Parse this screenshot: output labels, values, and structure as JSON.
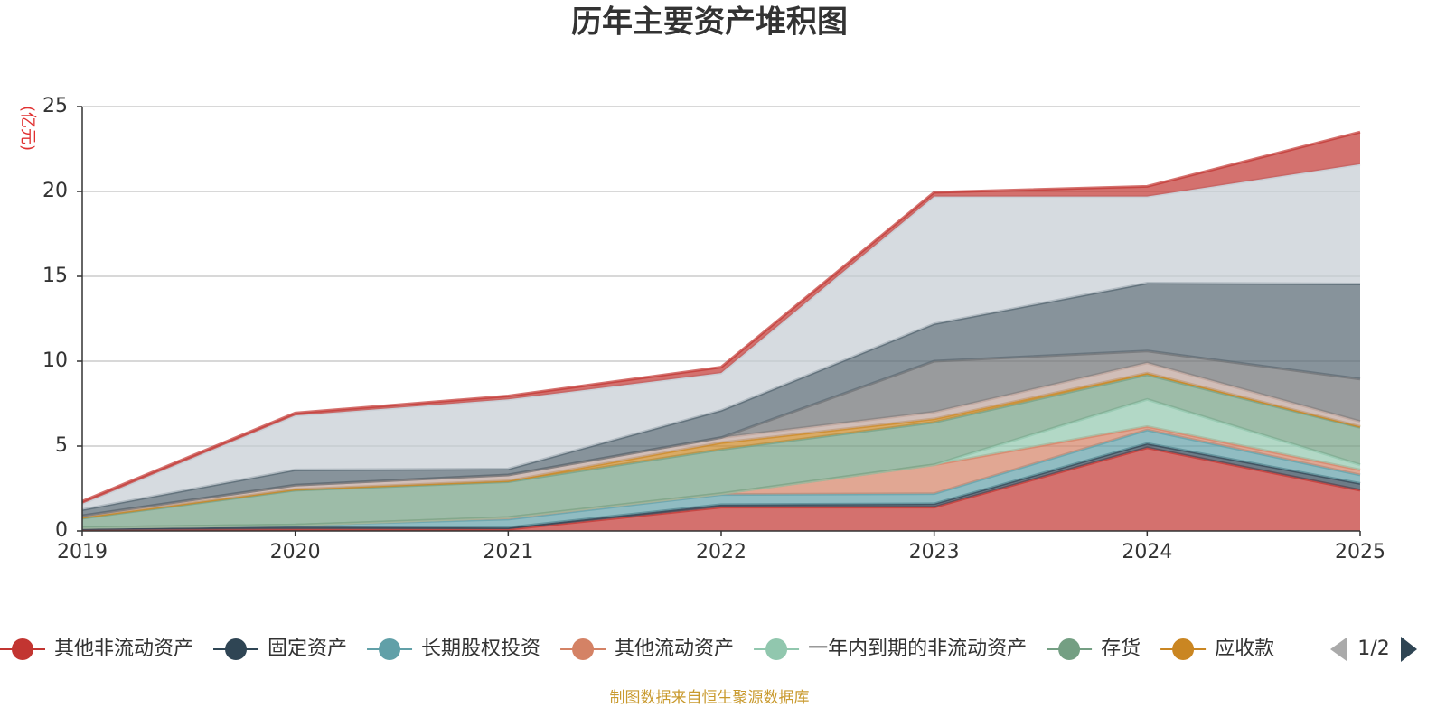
{
  "chart_data": {
    "type": "stacked_area",
    "title": "历年主要资产堆积图",
    "y_label": "(亿元)",
    "source": "制图数据来自恒生聚源数据库",
    "legend_page": "1/2",
    "categories": [
      "2019",
      "2020",
      "2021",
      "2022",
      "2023",
      "2024",
      "2025"
    ],
    "ylim": [
      0,
      25
    ],
    "yticks": [
      0,
      5,
      10,
      15,
      20,
      25
    ],
    "grid": true,
    "series": [
      {
        "name": "其他非流动资产",
        "color": "#c23531",
        "values": [
          0.05,
          0.1,
          0.1,
          1.4,
          1.4,
          4.9,
          2.4
        ]
      },
      {
        "name": "固定资产",
        "color": "#2f4554",
        "values": [
          0.1,
          0.15,
          0.1,
          0.15,
          0.2,
          0.25,
          0.4
        ]
      },
      {
        "name": "长期股权投资",
        "color": "#61a0a8",
        "values": [
          0.05,
          0.1,
          0.5,
          0.6,
          0.6,
          0.8,
          0.5
        ]
      },
      {
        "name": "其他流动资产",
        "color": "#d48265",
        "values": [
          0,
          0,
          0.1,
          0.05,
          1.7,
          0.2,
          0.3
        ]
      },
      {
        "name": "一年内到期的非流动资产",
        "color": "#91c7ae",
        "values": [
          0,
          0,
          0,
          0,
          0,
          1.6,
          0.3
        ]
      },
      {
        "name": "存货",
        "color": "#749f83",
        "values": [
          0.55,
          2.05,
          2.1,
          2.6,
          2.5,
          1.45,
          2.2
        ]
      },
      {
        "name": "应收款",
        "color": "#ca8622",
        "values": [
          0.05,
          0.05,
          0.05,
          0.4,
          0.2,
          0.1,
          0.05
        ]
      },
      {
        "color": "#bda29a",
        "values": [
          0.1,
          0.25,
          0.35,
          0.3,
          0.4,
          0.6,
          0.3
        ]
      },
      {
        "color": "#6e7074",
        "values": [
          0,
          0,
          0,
          0,
          3.0,
          0.7,
          2.5
        ]
      },
      {
        "color": "#546570",
        "values": [
          0.35,
          0.9,
          0.35,
          1.6,
          2.2,
          4.0,
          5.6
        ]
      },
      {
        "color": "#c4ccd3",
        "values": [
          0.35,
          3.2,
          4.1,
          2.2,
          7.5,
          5.1,
          7.05
        ]
      },
      {
        "color": "#c23531",
        "values": [
          0.15,
          0.15,
          0.2,
          0.35,
          0.25,
          0.6,
          1.9
        ]
      }
    ]
  }
}
